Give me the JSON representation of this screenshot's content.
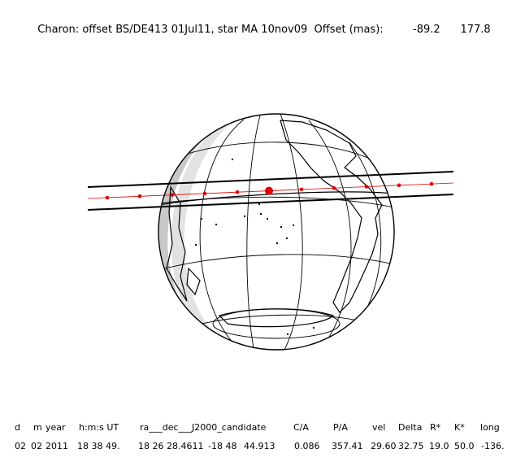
{
  "header": {
    "title": "Charon: offset BS/DE413 01Jul11, star MA 10nov09  Offset (mas):",
    "offset_x": "-89.2",
    "offset_y": "177.8"
  },
  "table": {
    "headers": [
      "d",
      "m",
      "year",
      "h:m:s UT",
      "ra___dec___J2000_candidate",
      "C/A",
      "P/A",
      "vel",
      "Delta",
      "R*",
      "K*",
      "long"
    ],
    "row": [
      "02",
      "02",
      "2011",
      "18 38 49.",
      "18 26 28.4611",
      "-18 48",
      "44.913",
      "0.086",
      "357.41",
      "29.60",
      "32.75",
      "19.0",
      "50.0",
      "-136."
    ]
  },
  "colors": {
    "track": "#e00000",
    "globe_outline": "#000000",
    "night_side": "#c8c8c8"
  }
}
